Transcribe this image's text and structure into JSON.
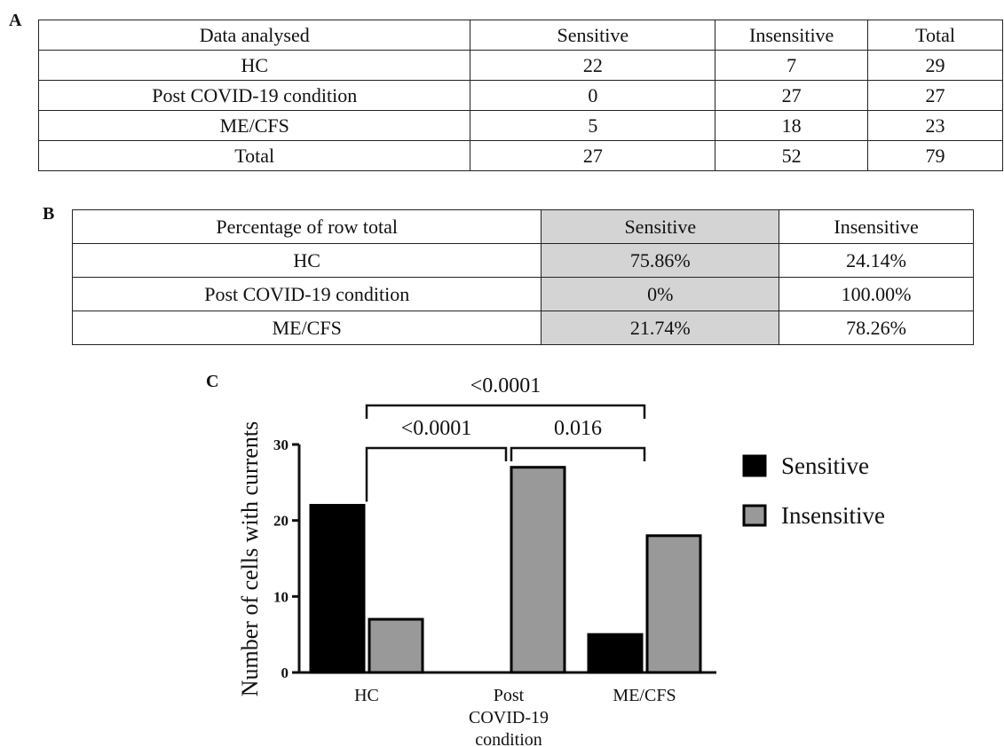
{
  "panel_labels": {
    "a": "A",
    "b": "B",
    "c": "C"
  },
  "table_a": {
    "header": [
      "Data analysed",
      "Sensitive",
      "Insensitive",
      "Total"
    ],
    "rows": [
      [
        "HC",
        "22",
        "7",
        "29"
      ],
      [
        "Post COVID-19 condition",
        "0",
        "27",
        "27"
      ],
      [
        "ME/CFS",
        "5",
        "18",
        "23"
      ],
      [
        "Total",
        "27",
        "52",
        "79"
      ]
    ]
  },
  "table_b": {
    "header": [
      "Percentage of row total",
      "Sensitive",
      "Insensitive"
    ],
    "rows": [
      [
        "HC",
        "75.86%",
        "24.14%"
      ],
      [
        "Post COVID-19 condition",
        "0%",
        "100.00%"
      ],
      [
        "ME/CFS",
        "21.74%",
        "78.26%"
      ]
    ],
    "shaded_column_color": "#d4d4d4"
  },
  "chart_data": {
    "type": "bar",
    "categories": [
      [
        "HC"
      ],
      [
        "Post",
        "COVID-19",
        "condition"
      ],
      [
        "ME/CFS"
      ]
    ],
    "series": [
      {
        "name": "Sensitive",
        "values": [
          22,
          0,
          5
        ],
        "color": "#000000"
      },
      {
        "name": "Insensitive",
        "values": [
          7,
          27,
          18
        ],
        "color": "#999999"
      }
    ],
    "ylabel": "Number of cells with currents",
    "ylim": [
      0,
      30
    ],
    "yticks": [
      "0",
      "10",
      "20",
      "30"
    ],
    "legend_position": "right",
    "significance": [
      {
        "label": "<0.0001",
        "from_group": 0,
        "to_group": 1,
        "level": 1
      },
      {
        "label": "0.016",
        "from_group": 1,
        "to_group": 2,
        "level": 1
      },
      {
        "label": "<0.0001",
        "from_group": 0,
        "to_group": 2,
        "level": 2
      }
    ]
  }
}
